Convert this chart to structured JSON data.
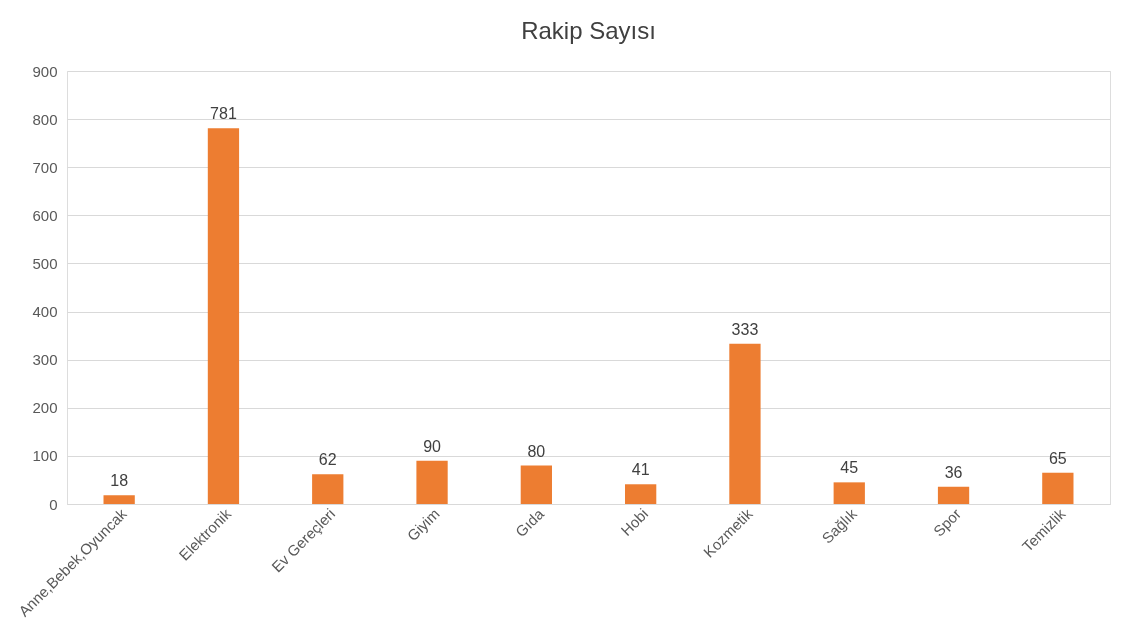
{
  "chart_data": {
    "type": "bar",
    "title": "Rakip Sayısı",
    "categories": [
      "Anne,Bebek,Oyuncak",
      "Elektronik",
      "Ev Gereçleri",
      "Giyim",
      "Gıda",
      "Hobi",
      "Kozmetik",
      "Sağlık",
      "Spor",
      "Temizlik"
    ],
    "values": [
      18,
      781,
      62,
      90,
      80,
      41,
      333,
      45,
      36,
      65
    ],
    "color": "#ed7d31",
    "ylim": [
      0,
      900
    ],
    "yticks": [
      0,
      100,
      200,
      300,
      400,
      500,
      600,
      700,
      800,
      900
    ],
    "grid": "y",
    "data_labels": true
  }
}
